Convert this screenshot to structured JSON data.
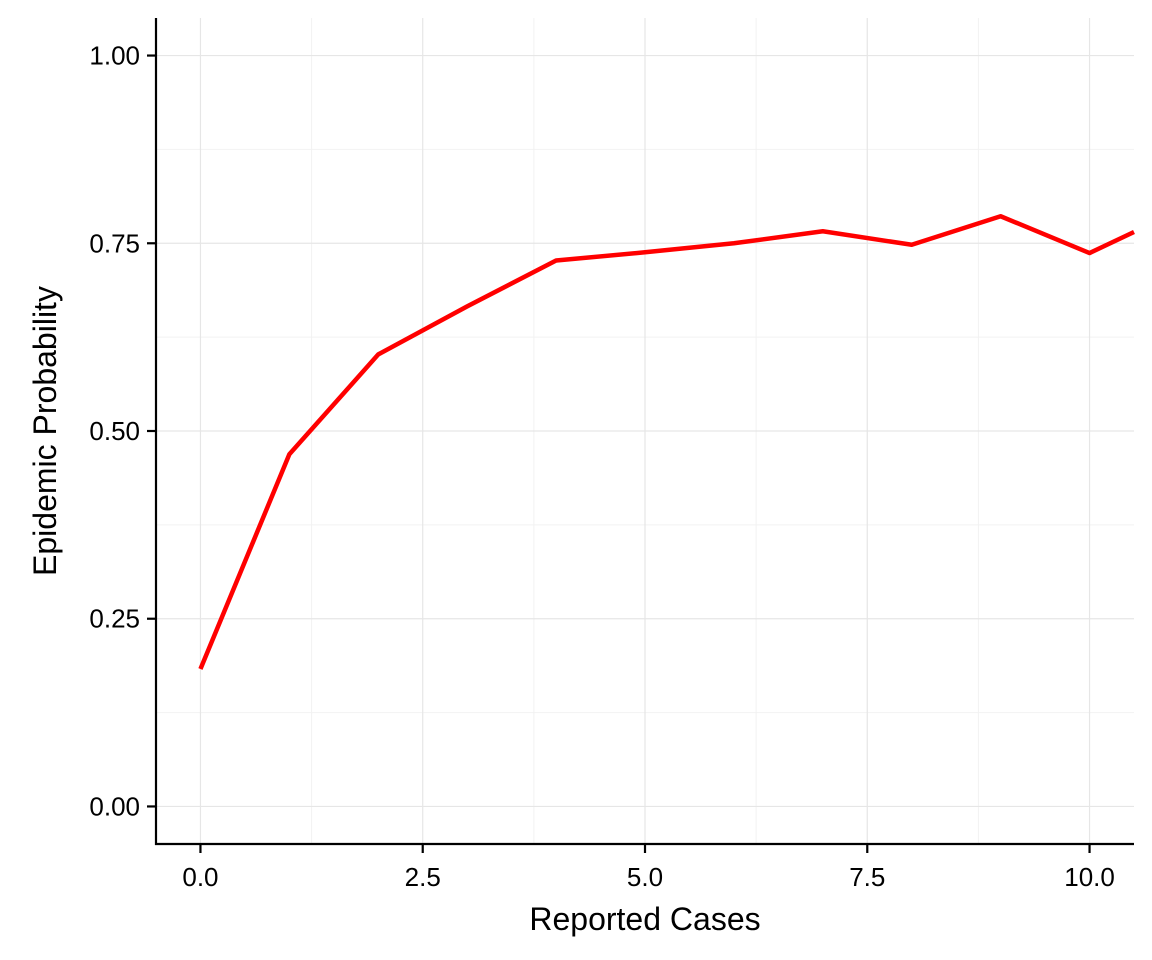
{
  "chart_data": {
    "type": "line",
    "title": "",
    "xlabel": "Reported Cases",
    "ylabel": "Epidemic Probability",
    "xlim": [
      -0.5,
      10.5
    ],
    "ylim": [
      -0.05,
      1.05
    ],
    "x_ticks": [
      0,
      2.5,
      5,
      7.5,
      10
    ],
    "x_tick_labels": [
      "0.0",
      "2.5",
      "5.0",
      "7.5",
      "10.0"
    ],
    "y_ticks": [
      0,
      0.25,
      0.5,
      0.75,
      1
    ],
    "y_tick_labels": [
      "0.00",
      "0.25",
      "0.50",
      "0.75",
      "1.00"
    ],
    "grid": true,
    "series": [
      {
        "color": "#ff0000",
        "x": [
          0,
          1,
          2,
          3,
          4,
          5,
          6,
          7,
          8,
          9,
          10,
          10.5
        ],
        "y": [
          0.183,
          0.469,
          0.602,
          0.666,
          0.727,
          0.738,
          0.75,
          0.766,
          0.748,
          0.786,
          0.737,
          0.765
        ]
      }
    ]
  }
}
